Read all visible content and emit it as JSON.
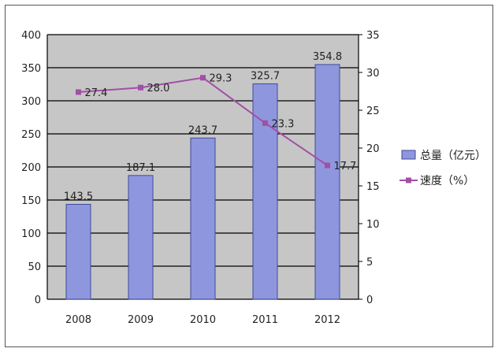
{
  "chart_data": {
    "type": "bar",
    "categories": [
      "2008",
      "2009",
      "2010",
      "2011",
      "2012"
    ],
    "series": [
      {
        "name": "总量（亿元）",
        "type": "bar",
        "axis": "left",
        "values": [
          143.5,
          187.1,
          243.7,
          325.7,
          354.8
        ],
        "labels": [
          "143.5",
          "187.1",
          "243.7",
          "325.7",
          "354.8"
        ]
      },
      {
        "name": "速度（%）",
        "type": "line",
        "axis": "right",
        "values": [
          27.4,
          28.0,
          29.3,
          23.3,
          17.7
        ],
        "labels": [
          "27.4",
          "28.0",
          "29.3",
          "23.3",
          "17.7"
        ]
      }
    ],
    "y_left": {
      "ylim": [
        0,
        400
      ],
      "ticks": [
        "0",
        "50",
        "100",
        "150",
        "200",
        "250",
        "300",
        "350",
        "400"
      ]
    },
    "y_right": {
      "ylim": [
        0,
        35
      ],
      "ticks": [
        "0",
        "5",
        "10",
        "15",
        "20",
        "25",
        "30",
        "35"
      ]
    },
    "grid": true,
    "legend_position": "right",
    "colors": {
      "bar": "#8e97dd",
      "line": "#a24fa6",
      "plot_bg": "#c6c6c6",
      "grid": "#000000"
    }
  }
}
